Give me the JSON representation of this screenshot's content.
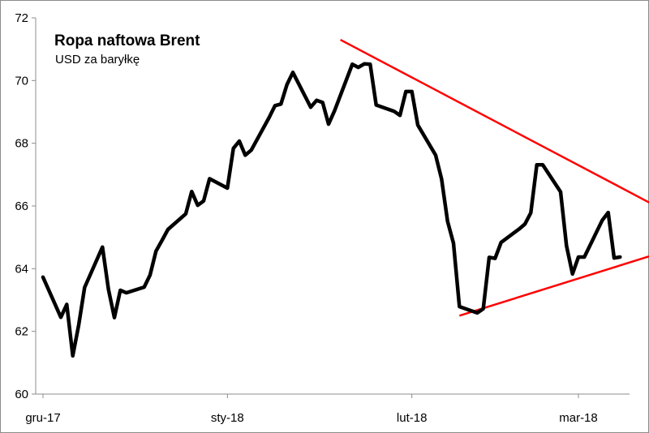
{
  "chart_data": {
    "type": "line",
    "title": "Ropa naftowa Brent",
    "subtitle": "USD za baryłkę",
    "ylim": [
      60,
      72
    ],
    "yticks": [
      60,
      62,
      64,
      66,
      68,
      70,
      72
    ],
    "xlabels": [
      "gru-17",
      "sty-18",
      "lut-18",
      "mar-18"
    ],
    "xlabel_positions": [
      "2017-12-01",
      "2018-01-01",
      "2018-02-01",
      "2018-03-01"
    ],
    "xlim": [
      "2017-12-01",
      "2018-03-10"
    ],
    "grid": false,
    "colors": {
      "series": "#000000",
      "trend": "#ff0000",
      "axis": "#8c8c8c"
    },
    "series": [
      {
        "x": [
          "2017-12-01",
          "2017-12-04",
          "2017-12-05",
          "2017-12-06",
          "2017-12-07",
          "2017-12-08",
          "2017-12-11",
          "2017-12-12",
          "2017-12-13",
          "2017-12-14",
          "2017-12-15",
          "2017-12-18",
          "2017-12-19",
          "2017-12-20",
          "2017-12-21",
          "2017-12-22",
          "2017-12-25",
          "2017-12-26",
          "2017-12-27",
          "2017-12-28",
          "2017-12-29",
          "2018-01-01",
          "2018-01-02",
          "2018-01-03",
          "2018-01-04",
          "2018-01-05",
          "2018-01-08",
          "2018-01-09",
          "2018-01-10",
          "2018-01-11",
          "2018-01-12",
          "2018-01-15",
          "2018-01-16",
          "2018-01-17",
          "2018-01-18",
          "2018-01-19",
          "2018-01-22",
          "2018-01-23",
          "2018-01-24",
          "2018-01-25",
          "2018-01-26",
          "2018-01-29",
          "2018-01-30",
          "2018-01-31",
          "2018-02-01",
          "2018-02-02",
          "2018-02-05",
          "2018-02-06",
          "2018-02-07",
          "2018-02-08",
          "2018-02-09",
          "2018-02-12",
          "2018-02-13",
          "2018-02-14",
          "2018-02-15",
          "2018-02-16",
          "2018-02-19",
          "2018-02-20",
          "2018-02-21",
          "2018-02-22",
          "2018-02-23",
          "2018-02-26",
          "2018-02-27",
          "2018-02-28",
          "2018-03-01",
          "2018-03-02",
          "2018-03-05",
          "2018-03-06",
          "2018-03-07",
          "2018-03-08"
        ],
        "values": [
          63.73,
          62.45,
          62.86,
          61.22,
          62.2,
          63.4,
          64.69,
          63.34,
          62.44,
          63.31,
          63.23,
          63.41,
          63.8,
          64.56,
          64.9,
          65.25,
          65.75,
          66.46,
          66.02,
          66.16,
          66.87,
          66.57,
          67.84,
          68.07,
          67.62,
          67.78,
          68.82,
          69.2,
          69.25,
          69.87,
          70.26,
          69.15,
          69.37,
          69.3,
          68.61,
          69.03,
          70.52,
          70.42,
          70.53,
          70.52,
          69.22,
          69.02,
          68.89,
          69.65,
          69.65,
          68.58,
          67.62,
          66.86,
          65.51,
          64.81,
          62.79,
          62.59,
          62.72,
          64.36,
          64.33,
          64.84,
          65.26,
          65.42,
          65.78,
          67.31,
          67.31,
          66.45,
          64.73,
          63.83,
          64.37,
          64.37,
          65.54,
          65.79,
          64.34,
          64.37
        ],
        "note": ""
      }
    ],
    "trendlines": [
      {
        "from": [
          "2018-01-20",
          71.3
        ],
        "to": [
          "2018-03-13",
          66.1
        ]
      },
      {
        "from": [
          "2018-02-09",
          62.5
        ],
        "to": [
          "2018-03-13",
          64.4
        ]
      }
    ]
  }
}
